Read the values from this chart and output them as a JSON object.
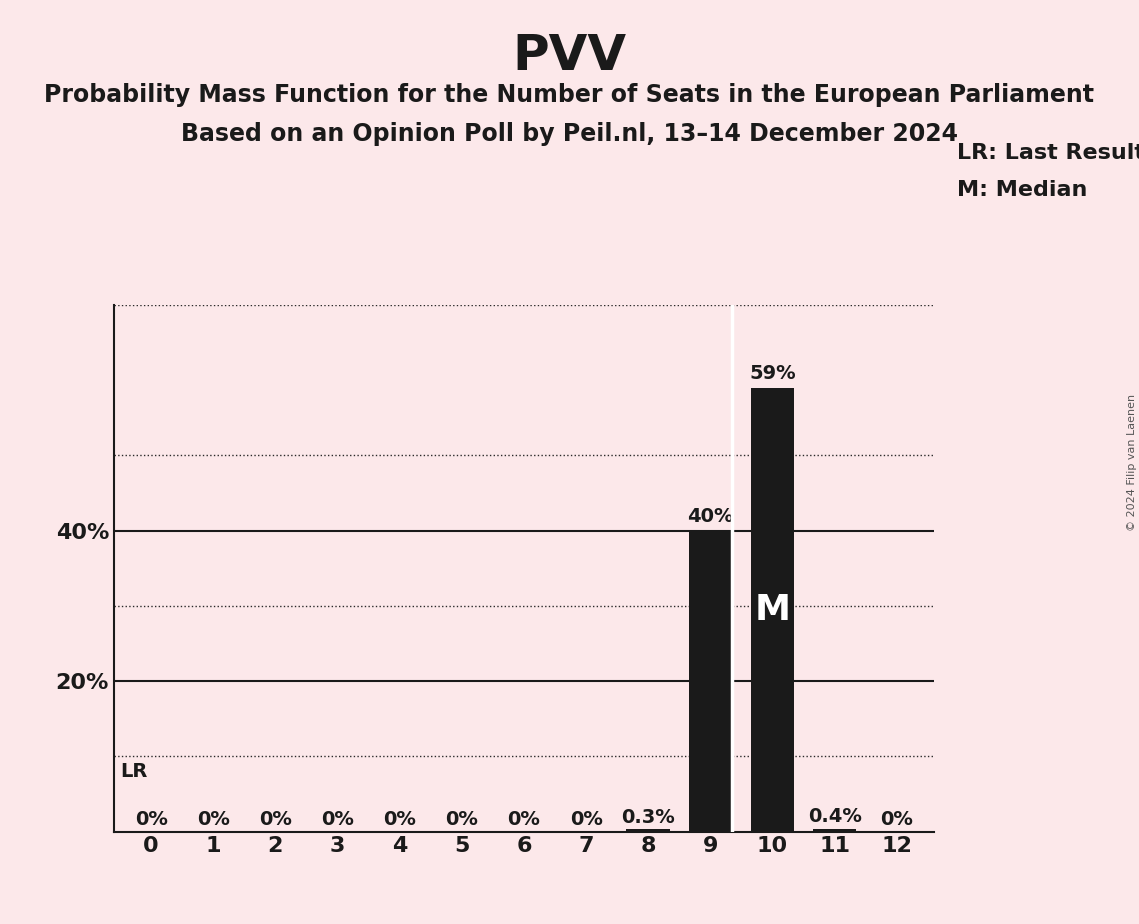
{
  "title": "PVV",
  "subtitle1": "Probability Mass Function for the Number of Seats in the European Parliament",
  "subtitle2": "Based on an Opinion Poll by Peil.nl, 13–14 December 2024",
  "copyright": "© 2024 Filip van Laenen",
  "categories": [
    0,
    1,
    2,
    3,
    4,
    5,
    6,
    7,
    8,
    9,
    10,
    11,
    12
  ],
  "values": [
    0.0,
    0.0,
    0.0,
    0.0,
    0.0,
    0.0,
    0.0,
    0.0,
    0.003,
    0.4,
    0.59,
    0.004,
    0.0
  ],
  "bar_color": "#1a1a1a",
  "background_color": "#fce8ea",
  "last_result": 9,
  "median": 10,
  "legend_lr": "LR: Last Result",
  "legend_m": "M: Median",
  "ylim": [
    0,
    0.7
  ],
  "yticks": [
    0.0,
    0.1,
    0.2,
    0.3,
    0.4,
    0.5,
    0.6,
    0.7
  ],
  "yticklabels": [
    "",
    "",
    "20%",
    "",
    "40%",
    "",
    "",
    ""
  ],
  "dotted_yticks": [
    0.1,
    0.3,
    0.5,
    0.7
  ],
  "solid_yticks": [
    0.2,
    0.4
  ],
  "label_values": {
    "0": "0%",
    "1": "0%",
    "2": "0%",
    "3": "0%",
    "4": "0%",
    "5": "0%",
    "6": "0%",
    "7": "0%",
    "8": "0.3%",
    "9": "40%",
    "10": "59%",
    "11": "0.4%",
    "12": "0%"
  },
  "title_fontsize": 36,
  "subtitle_fontsize": 17,
  "label_fontsize": 14,
  "axis_fontsize": 16,
  "legend_fontsize": 16,
  "bar_width": 0.7
}
